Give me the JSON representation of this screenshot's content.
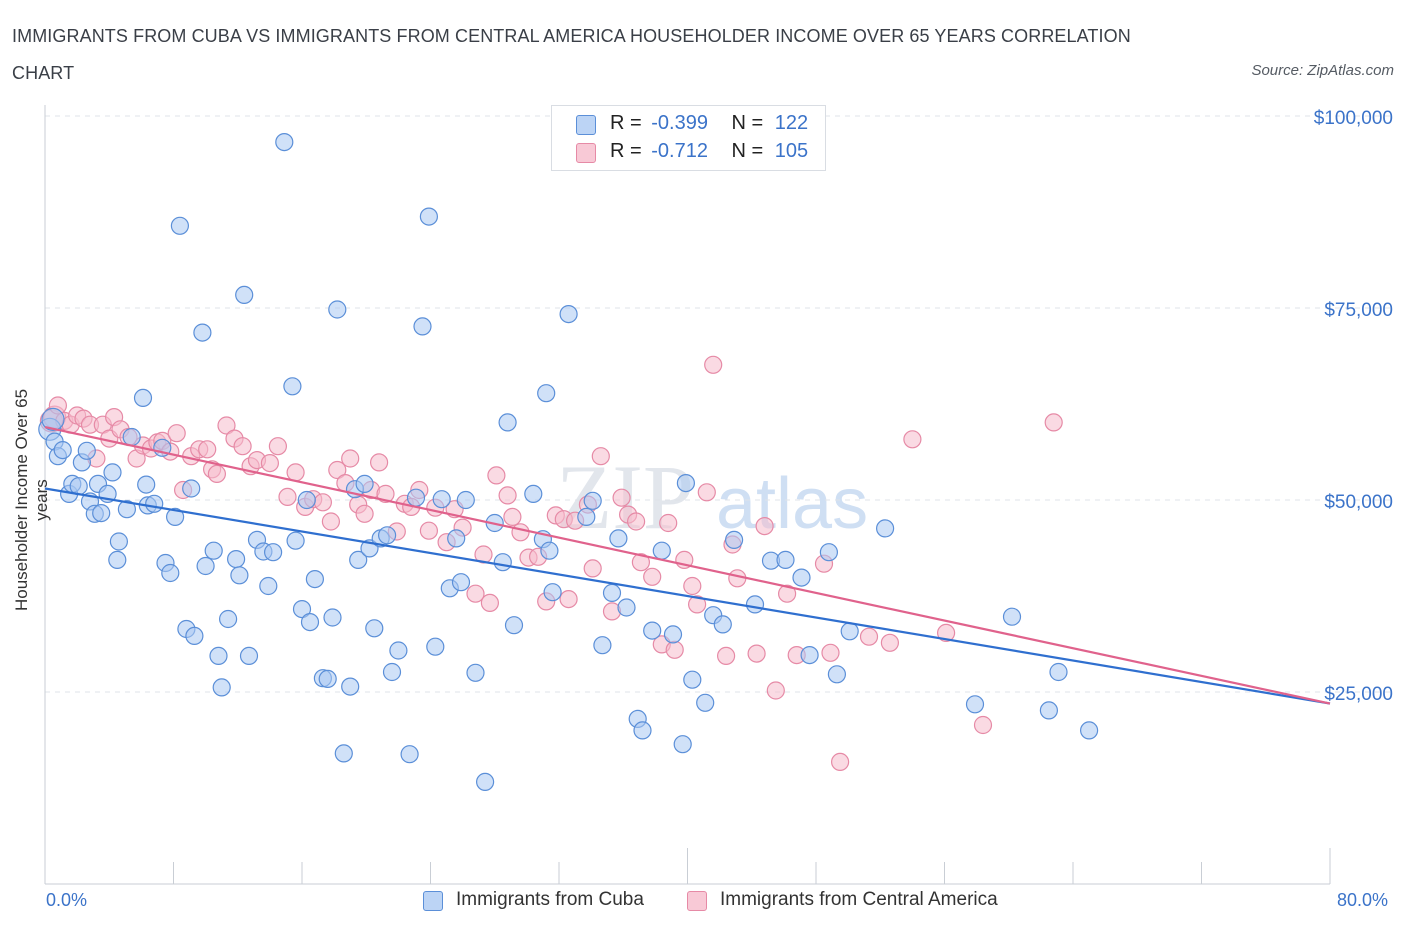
{
  "header": {
    "title": "IMMIGRANTS FROM CUBA VS IMMIGRANTS FROM CENTRAL AMERICA HOUSEHOLDER INCOME OVER 65 YEARS CORRELATION CHART",
    "source": "Source: ZipAtlas.com"
  },
  "watermark": {
    "zip": "ZIP",
    "atlas": "atlas"
  },
  "legend": {
    "rows": [
      {
        "r_label": "R =",
        "r_value": "-0.399",
        "n_label": "N =",
        "n_value": "122"
      },
      {
        "r_label": "R =",
        "r_value": "-0.712",
        "n_label": "N =",
        "n_value": "105"
      }
    ]
  },
  "colors": {
    "cuba_fill": "#a9c8f2",
    "cuba_stroke": "#5b8fd8",
    "cuba_line": "#2f6fcf",
    "ca_fill": "#f6bccc",
    "ca_stroke": "#e68aa6",
    "ca_line": "#e0628c",
    "axis_text": "#3b73c9",
    "grid": "#dfe3e8"
  },
  "chart_data": {
    "type": "scatter",
    "title": "IMMIGRANTS FROM CUBA VS IMMIGRANTS FROM CENTRAL AMERICA HOUSEHOLDER INCOME OVER 65 YEARS CORRELATION CHART",
    "xlabel": "",
    "ylabel": "Householder Income Over 65 years",
    "xlim": [
      0,
      80
    ],
    "ylim": [
      0,
      100000
    ],
    "x_tick_labels": [
      "0.0%",
      "80.0%"
    ],
    "y_ticks": [
      25000,
      50000,
      75000,
      100000
    ],
    "y_tick_labels": [
      "$25,000",
      "$50,000",
      "$75,000",
      "$100,000"
    ],
    "grid": true,
    "legend_position": "bottom",
    "series": [
      {
        "name": "Immigrants from Cuba",
        "r": -0.399,
        "n": 122,
        "trend": {
          "x": [
            0,
            80
          ],
          "y": [
            51500,
            23500
          ]
        },
        "points": [
          [
            0.3,
            59200
          ],
          [
            0.5,
            60500
          ],
          [
            0.6,
            57600
          ],
          [
            0.8,
            55700
          ],
          [
            1.1,
            56500
          ],
          [
            1.5,
            50800
          ],
          [
            1.7,
            52100
          ],
          [
            2.1,
            51800
          ],
          [
            2.3,
            54900
          ],
          [
            2.6,
            56400
          ],
          [
            2.8,
            49800
          ],
          [
            3.1,
            48200
          ],
          [
            3.3,
            52100
          ],
          [
            3.5,
            48300
          ],
          [
            3.9,
            50800
          ],
          [
            4.2,
            53600
          ],
          [
            4.5,
            42200
          ],
          [
            4.6,
            44600
          ],
          [
            5.1,
            48800
          ],
          [
            5.4,
            58200
          ],
          [
            6.1,
            63300
          ],
          [
            6.3,
            52000
          ],
          [
            6.4,
            49300
          ],
          [
            6.8,
            49500
          ],
          [
            7.3,
            56800
          ],
          [
            7.5,
            41800
          ],
          [
            7.8,
            40500
          ],
          [
            8.1,
            47800
          ],
          [
            8.4,
            85700
          ],
          [
            8.8,
            33200
          ],
          [
            9.1,
            51500
          ],
          [
            9.3,
            32300
          ],
          [
            9.8,
            71800
          ],
          [
            10.0,
            41400
          ],
          [
            10.5,
            43400
          ],
          [
            10.8,
            29700
          ],
          [
            11.0,
            25600
          ],
          [
            11.4,
            34500
          ],
          [
            11.9,
            42300
          ],
          [
            12.1,
            40200
          ],
          [
            12.4,
            76700
          ],
          [
            12.7,
            29700
          ],
          [
            13.2,
            44800
          ],
          [
            13.6,
            43300
          ],
          [
            13.9,
            38800
          ],
          [
            14.2,
            43200
          ],
          [
            14.9,
            96600
          ],
          [
            15.4,
            64800
          ],
          [
            15.6,
            44700
          ],
          [
            16.0,
            35800
          ],
          [
            16.3,
            50000
          ],
          [
            16.5,
            34100
          ],
          [
            16.8,
            39700
          ],
          [
            17.3,
            26800
          ],
          [
            17.6,
            26700
          ],
          [
            17.9,
            34700
          ],
          [
            18.2,
            74800
          ],
          [
            18.6,
            17000
          ],
          [
            19.0,
            25700
          ],
          [
            19.3,
            51400
          ],
          [
            19.5,
            42200
          ],
          [
            19.9,
            52100
          ],
          [
            20.2,
            43700
          ],
          [
            20.5,
            33300
          ],
          [
            20.9,
            45000
          ],
          [
            21.3,
            45400
          ],
          [
            21.6,
            27600
          ],
          [
            22.0,
            30400
          ],
          [
            22.7,
            16900
          ],
          [
            23.1,
            50300
          ],
          [
            23.5,
            72600
          ],
          [
            23.9,
            86900
          ],
          [
            24.3,
            30900
          ],
          [
            24.7,
            50100
          ],
          [
            25.2,
            38500
          ],
          [
            25.6,
            45000
          ],
          [
            25.9,
            39300
          ],
          [
            26.2,
            50000
          ],
          [
            26.8,
            27500
          ],
          [
            27.4,
            13300
          ],
          [
            28.0,
            47000
          ],
          [
            28.5,
            41900
          ],
          [
            28.8,
            60100
          ],
          [
            29.2,
            33700
          ],
          [
            30.4,
            50800
          ],
          [
            31.0,
            44900
          ],
          [
            31.2,
            63900
          ],
          [
            31.4,
            43400
          ],
          [
            31.6,
            38000
          ],
          [
            32.6,
            74200
          ],
          [
            33.7,
            47800
          ],
          [
            34.1,
            49900
          ],
          [
            34.7,
            31100
          ],
          [
            35.3,
            37900
          ],
          [
            35.7,
            45000
          ],
          [
            36.2,
            36000
          ],
          [
            36.9,
            21500
          ],
          [
            37.2,
            20000
          ],
          [
            37.8,
            33000
          ],
          [
            38.4,
            43400
          ],
          [
            39.1,
            32500
          ],
          [
            39.7,
            18200
          ],
          [
            39.9,
            52200
          ],
          [
            40.3,
            26600
          ],
          [
            41.1,
            23600
          ],
          [
            41.6,
            35000
          ],
          [
            42.2,
            33800
          ],
          [
            42.9,
            44800
          ],
          [
            44.2,
            36400
          ],
          [
            45.2,
            42100
          ],
          [
            46.1,
            42200
          ],
          [
            47.1,
            39900
          ],
          [
            47.6,
            29800
          ],
          [
            48.8,
            43200
          ],
          [
            49.3,
            27300
          ],
          [
            50.1,
            32900
          ],
          [
            52.3,
            46300
          ],
          [
            57.9,
            23400
          ],
          [
            60.2,
            34800
          ],
          [
            62.5,
            22600
          ],
          [
            63.1,
            27600
          ],
          [
            65.0,
            20000
          ]
        ]
      },
      {
        "name": "Immigrants from Central America",
        "r": -0.712,
        "n": 105,
        "trend": {
          "x": [
            0,
            80
          ],
          "y": [
            59500,
            23500
          ]
        },
        "points": [
          [
            0.4,
            60300
          ],
          [
            0.6,
            60800
          ],
          [
            0.8,
            62300
          ],
          [
            1.2,
            60300
          ],
          [
            1.6,
            59800
          ],
          [
            2.0,
            61000
          ],
          [
            2.4,
            60600
          ],
          [
            2.8,
            59800
          ],
          [
            3.2,
            55400
          ],
          [
            3.6,
            59800
          ],
          [
            4.0,
            58000
          ],
          [
            4.3,
            60800
          ],
          [
            4.7,
            59200
          ],
          [
            5.2,
            58200
          ],
          [
            5.7,
            55400
          ],
          [
            6.1,
            57100
          ],
          [
            6.6,
            56700
          ],
          [
            7.0,
            57500
          ],
          [
            7.3,
            57700
          ],
          [
            7.8,
            56300
          ],
          [
            8.2,
            58700
          ],
          [
            8.6,
            51300
          ],
          [
            9.1,
            55700
          ],
          [
            9.6,
            56600
          ],
          [
            10.1,
            56600
          ],
          [
            10.4,
            54000
          ],
          [
            10.7,
            53400
          ],
          [
            11.3,
            59700
          ],
          [
            11.8,
            58000
          ],
          [
            12.3,
            57000
          ],
          [
            12.8,
            54400
          ],
          [
            13.2,
            55200
          ],
          [
            14.0,
            54800
          ],
          [
            14.5,
            57000
          ],
          [
            15.1,
            50400
          ],
          [
            15.6,
            53600
          ],
          [
            16.2,
            49100
          ],
          [
            16.7,
            50100
          ],
          [
            17.3,
            49700
          ],
          [
            17.8,
            47200
          ],
          [
            18.2,
            53900
          ],
          [
            18.7,
            52200
          ],
          [
            19.0,
            55400
          ],
          [
            19.5,
            49400
          ],
          [
            19.9,
            48200
          ],
          [
            20.3,
            51300
          ],
          [
            20.8,
            54900
          ],
          [
            21.2,
            50800
          ],
          [
            21.9,
            45900
          ],
          [
            22.4,
            49500
          ],
          [
            22.8,
            49100
          ],
          [
            23.3,
            51300
          ],
          [
            23.9,
            46000
          ],
          [
            24.3,
            49000
          ],
          [
            25.0,
            44500
          ],
          [
            25.5,
            48800
          ],
          [
            26.0,
            46400
          ],
          [
            26.8,
            37800
          ],
          [
            27.3,
            42900
          ],
          [
            27.7,
            36600
          ],
          [
            28.1,
            53200
          ],
          [
            28.8,
            50600
          ],
          [
            29.1,
            47800
          ],
          [
            29.6,
            45800
          ],
          [
            30.1,
            42500
          ],
          [
            30.7,
            42600
          ],
          [
            31.2,
            36800
          ],
          [
            31.8,
            48000
          ],
          [
            32.3,
            47500
          ],
          [
            32.6,
            37100
          ],
          [
            33.0,
            47300
          ],
          [
            33.8,
            49400
          ],
          [
            34.1,
            41100
          ],
          [
            34.6,
            55700
          ],
          [
            35.3,
            35500
          ],
          [
            35.9,
            50300
          ],
          [
            36.3,
            48100
          ],
          [
            36.8,
            47200
          ],
          [
            37.1,
            41900
          ],
          [
            37.8,
            40000
          ],
          [
            38.4,
            31200
          ],
          [
            38.8,
            47000
          ],
          [
            39.2,
            30500
          ],
          [
            39.8,
            42200
          ],
          [
            40.3,
            38800
          ],
          [
            40.6,
            36400
          ],
          [
            41.2,
            51000
          ],
          [
            41.6,
            67600
          ],
          [
            42.4,
            29700
          ],
          [
            42.8,
            44200
          ],
          [
            43.1,
            39800
          ],
          [
            44.3,
            30000
          ],
          [
            44.8,
            46600
          ],
          [
            45.5,
            25200
          ],
          [
            46.2,
            37800
          ],
          [
            46.8,
            29800
          ],
          [
            48.5,
            41700
          ],
          [
            48.9,
            30100
          ],
          [
            49.5,
            15900
          ],
          [
            51.3,
            32200
          ],
          [
            52.6,
            31400
          ],
          [
            54.0,
            57900
          ],
          [
            56.1,
            32700
          ],
          [
            58.4,
            20700
          ],
          [
            62.8,
            60100
          ]
        ]
      }
    ]
  }
}
